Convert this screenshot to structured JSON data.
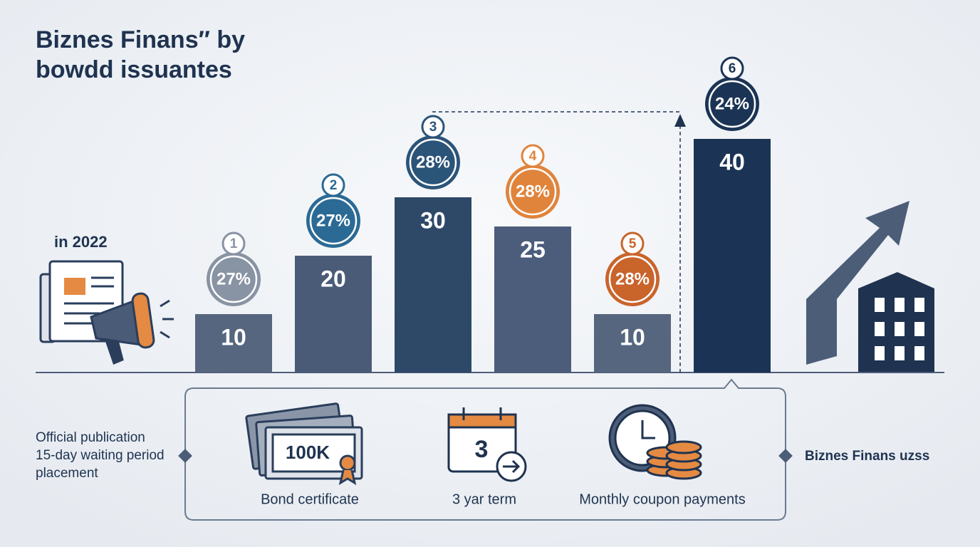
{
  "chart_data": {
    "type": "bar",
    "title_lines": [
      "Biznes Finans″ by",
      "bowdd issuantes"
    ],
    "categories": [
      "1",
      "2",
      "3",
      "4",
      "5",
      "6"
    ],
    "values": [
      10,
      20,
      30,
      25,
      10,
      40
    ],
    "annotations": [
      "27%",
      "27%",
      "28%",
      "28%",
      "28%",
      "24%"
    ],
    "colors": [
      "#56667f",
      "#4a5b78",
      "#2e4868",
      "#4b5d7b",
      "#56667f",
      "#1b3455"
    ],
    "badge_colors": [
      "#8893a3",
      "#2b6a94",
      "#2b5479",
      "#e0843c",
      "#c9642b",
      "#1b3455"
    ],
    "ylim": [
      0,
      40
    ]
  },
  "page": {
    "year": "in 2022",
    "notes": [
      "Official publication",
      "15-day waiting period",
      "placement"
    ],
    "brand": "Biznes Finans uzss",
    "items": [
      {
        "icon_text": "100K",
        "label": "Bond certificate"
      },
      {
        "icon_text": "3",
        "label": "3 yar term"
      },
      {
        "label": "Monthly coupon payments"
      }
    ]
  }
}
